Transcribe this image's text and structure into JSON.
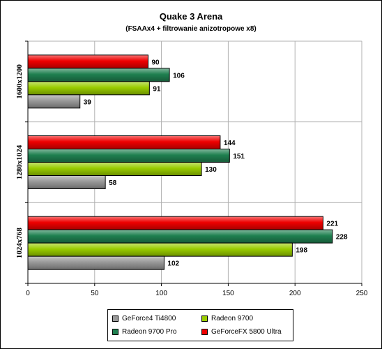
{
  "title": "Quake 3 Arena",
  "subtitle": "(FSAAx4 + filtrowanie anizotropowe x8)",
  "chart_data": {
    "type": "bar",
    "orientation": "horizontal",
    "categories": [
      "1600x1200",
      "1280x1024",
      "1024x768"
    ],
    "series": [
      {
        "name": "GeForce4 Ti4800",
        "color": "#999999",
        "values": [
          39,
          58,
          102
        ]
      },
      {
        "name": "Radeon 9700",
        "color": "#99cc00",
        "values": [
          91,
          130,
          198
        ]
      },
      {
        "name": "Radeon 9700 Pro",
        "color": "#1f8050",
        "values": [
          106,
          151,
          228
        ]
      },
      {
        "name": "GeForceFX 5800 Ultra",
        "color": "#ee0000",
        "values": [
          90,
          144,
          221
        ]
      }
    ],
    "xlim": [
      0,
      250
    ],
    "xticks": [
      0,
      50,
      100,
      150,
      200,
      250
    ],
    "grid": "vertical",
    "legend_position": "bottom"
  },
  "legend": {
    "items": [
      {
        "label": "GeForce4 Ti4800",
        "color": "#999999"
      },
      {
        "label": "Radeon 9700",
        "color": "#99cc00"
      },
      {
        "label": "Radeon 9700 Pro",
        "color": "#1f8050"
      },
      {
        "label": "GeForceFX 5800 Ultra",
        "color": "#ee0000"
      }
    ]
  }
}
